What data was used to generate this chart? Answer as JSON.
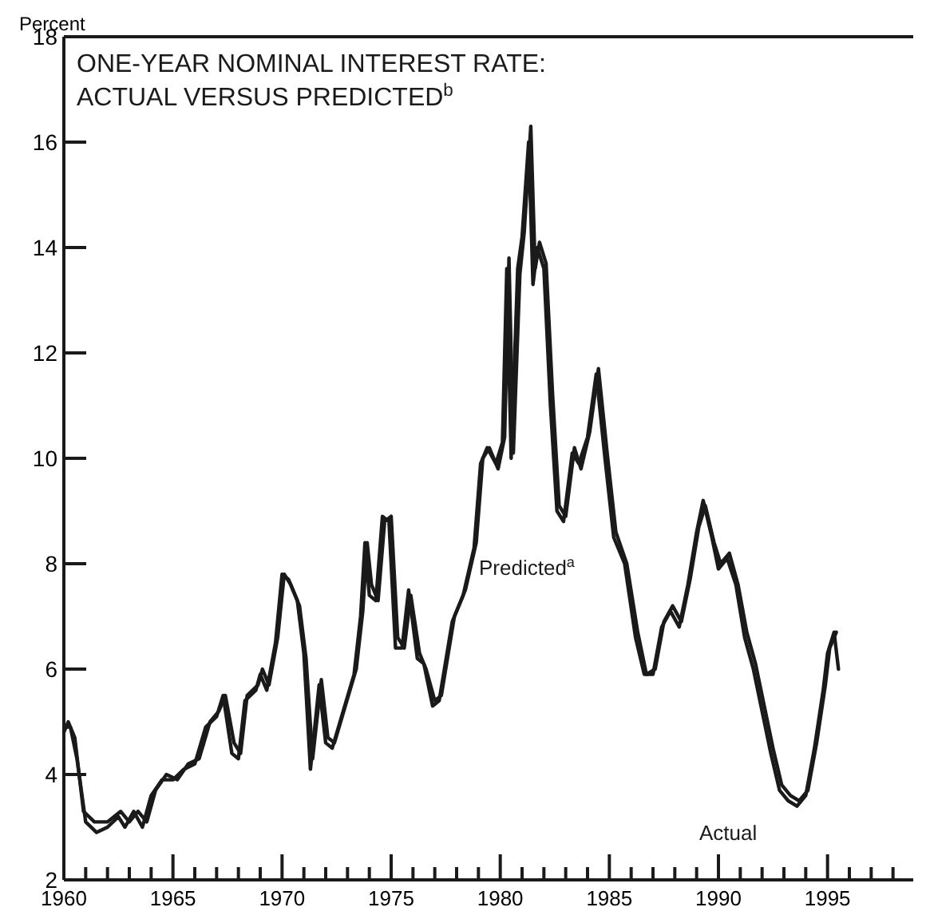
{
  "chart_data": {
    "type": "line",
    "title": "ONE-YEAR NOMINAL INTEREST RATE:\nACTUAL VERSUS PREDICTED$^{b}$",
    "ylabel": "Percent",
    "xlim": [
      1960,
      1999
    ],
    "xticks": [
      1960,
      {
        "value": 1961,
        "label": null
      },
      {
        "value": 1962,
        "label": null
      },
      {
        "value": 1963,
        "label": null
      },
      {
        "value": 1964,
        "label": null
      },
      1965,
      {
        "value": 1966,
        "label": null
      },
      {
        "value": 1967,
        "label": null
      },
      {
        "value": 1968,
        "label": null
      },
      {
        "value": 1969,
        "label": null
      },
      1970,
      {
        "value": 1971,
        "label": null
      },
      {
        "value": 1972,
        "label": null
      },
      {
        "value": 1973,
        "label": null
      },
      {
        "value": 1974,
        "label": null
      },
      1975,
      {
        "value": 1976,
        "label": null
      },
      {
        "value": 1977,
        "label": null
      },
      {
        "value": 1978,
        "label": null
      },
      {
        "value": 1979,
        "label": null
      },
      1980,
      {
        "value": 1981,
        "label": null
      },
      {
        "value": 1982,
        "label": null
      },
      {
        "value": 1983,
        "label": null
      },
      {
        "value": 1984,
        "label": null
      },
      1985,
      {
        "value": 1986,
        "label": null
      },
      {
        "value": 1987,
        "label": null
      },
      {
        "value": 1988,
        "label": null
      },
      {
        "value": 1989,
        "label": null
      },
      1990,
      {
        "value": 1991,
        "label": null
      },
      {
        "value": 1992,
        "label": null
      },
      {
        "value": 1993,
        "label": null
      },
      {
        "value": 1994,
        "label": null
      },
      1995,
      {
        "value": 1996,
        "label": null
      },
      {
        "value": 1997,
        "label": null
      },
      {
        "value": 1998,
        "label": null
      }
    ],
    "ylim": [
      2,
      18
    ],
    "yticks": [
      2,
      4,
      6,
      8,
      10,
      12,
      14,
      16,
      18
    ],
    "grid": false,
    "line_style": "solid",
    "series": [
      {
        "name": "Actual",
        "color": "#1a1a1a",
        "x": [
          1960.0,
          1960.3,
          1960.6,
          1961.0,
          1961.5,
          1962.0,
          1962.5,
          1962.8,
          1963.2,
          1963.6,
          1964.0,
          1964.5,
          1965.0,
          1965.5,
          1966.0,
          1966.5,
          1967.0,
          1967.3,
          1967.7,
          1968.0,
          1968.3,
          1968.8,
          1969.0,
          1969.3,
          1969.7,
          1970.0,
          1970.3,
          1970.7,
          1971.0,
          1971.3,
          1971.7,
          1972.0,
          1972.3,
          1972.8,
          1973.3,
          1973.6,
          1973.8,
          1974.0,
          1974.3,
          1974.6,
          1974.9,
          1975.2,
          1975.5,
          1975.8,
          1976.2,
          1976.5,
          1976.9,
          1977.2,
          1977.8,
          1978.3,
          1978.8,
          1979.1,
          1979.4,
          1979.8,
          1980.1,
          1980.3,
          1980.5,
          1980.8,
          1981.0,
          1981.3,
          1981.5,
          1981.7,
          1982.0,
          1982.3,
          1982.6,
          1982.9,
          1983.3,
          1983.6,
          1984.0,
          1984.4,
          1984.8,
          1985.2,
          1985.7,
          1986.2,
          1986.6,
          1987.0,
          1987.4,
          1987.8,
          1988.2,
          1988.6,
          1989.0,
          1989.3,
          1989.7,
          1990.0,
          1990.4,
          1990.8,
          1991.2,
          1991.6,
          1992.0,
          1992.4,
          1992.8,
          1993.2,
          1993.6,
          1994.0,
          1994.4,
          1994.8,
          1995.0,
          1995.3,
          1995.5
        ],
        "values": [
          4.9,
          4.9,
          4.3,
          3.1,
          2.9,
          3.0,
          3.2,
          3.0,
          3.3,
          3.0,
          3.6,
          3.9,
          3.9,
          4.1,
          4.2,
          4.9,
          5.1,
          5.5,
          4.4,
          4.3,
          5.4,
          5.6,
          5.9,
          5.6,
          6.5,
          7.8,
          7.7,
          7.3,
          6.3,
          4.1,
          5.7,
          4.6,
          4.5,
          5.2,
          5.9,
          7.0,
          8.4,
          7.4,
          7.3,
          8.9,
          8.8,
          6.4,
          6.4,
          7.5,
          6.2,
          6.1,
          5.3,
          5.4,
          6.9,
          7.4,
          8.3,
          9.9,
          10.2,
          9.9,
          10.3,
          13.6,
          10.0,
          13.6,
          14.2,
          16.0,
          13.3,
          14.0,
          13.6,
          11.0,
          9.0,
          8.8,
          10.1,
          9.9,
          10.4,
          11.6,
          10.0,
          8.5,
          8.0,
          6.6,
          5.9,
          5.9,
          6.8,
          7.1,
          6.8,
          7.6,
          8.6,
          9.2,
          8.5,
          7.9,
          8.1,
          7.6,
          6.6,
          6.0,
          5.2,
          4.4,
          3.7,
          3.5,
          3.4,
          3.6,
          4.5,
          5.6,
          6.3,
          6.7,
          6.0
        ]
      },
      {
        "name": "Predicted$^{a}$",
        "color": "#1a1a1a",
        "x": [
          1960.0,
          1960.2,
          1960.5,
          1960.9,
          1961.4,
          1962.0,
          1962.6,
          1963.0,
          1963.4,
          1963.8,
          1964.2,
          1964.7,
          1965.2,
          1965.7,
          1966.2,
          1966.7,
          1967.1,
          1967.4,
          1967.8,
          1968.1,
          1968.4,
          1968.9,
          1969.1,
          1969.4,
          1969.8,
          1970.1,
          1970.4,
          1970.8,
          1971.1,
          1971.4,
          1971.8,
          1972.1,
          1972.4,
          1972.9,
          1973.4,
          1973.7,
          1973.9,
          1974.1,
          1974.4,
          1974.7,
          1975.0,
          1975.3,
          1975.6,
          1975.9,
          1976.3,
          1976.6,
          1977.0,
          1977.3,
          1977.9,
          1978.4,
          1978.9,
          1979.2,
          1979.5,
          1979.9,
          1980.2,
          1980.4,
          1980.6,
          1980.9,
          1981.1,
          1981.4,
          1981.6,
          1981.8,
          1982.1,
          1982.4,
          1982.7,
          1983.0,
          1983.4,
          1983.7,
          1984.1,
          1984.5,
          1984.9,
          1985.3,
          1985.8,
          1986.3,
          1986.7,
          1987.1,
          1987.5,
          1987.9,
          1988.3,
          1988.7,
          1989.1,
          1989.4,
          1989.8,
          1990.1,
          1990.5,
          1990.9,
          1991.3,
          1991.7,
          1992.1,
          1992.5,
          1992.9,
          1993.3,
          1993.7,
          1994.1,
          1994.5,
          1994.9,
          1995.1,
          1995.4
        ],
        "values": [
          4.8,
          5.0,
          4.7,
          3.3,
          3.1,
          3.1,
          3.3,
          3.1,
          3.3,
          3.1,
          3.7,
          4.0,
          3.9,
          4.2,
          4.3,
          5.0,
          5.2,
          5.5,
          4.6,
          4.4,
          5.5,
          5.7,
          6.0,
          5.7,
          6.6,
          7.8,
          7.6,
          7.2,
          6.2,
          4.3,
          5.8,
          4.7,
          4.6,
          5.3,
          6.0,
          7.1,
          8.4,
          7.6,
          7.3,
          8.8,
          8.9,
          6.6,
          6.4,
          7.4,
          6.3,
          6.0,
          5.4,
          5.5,
          7.0,
          7.5,
          8.4,
          10.0,
          10.2,
          9.8,
          10.4,
          13.8,
          10.1,
          13.5,
          14.3,
          16.3,
          13.6,
          14.1,
          13.7,
          11.2,
          9.1,
          8.9,
          10.2,
          9.8,
          10.5,
          11.7,
          10.1,
          8.6,
          8.0,
          6.7,
          5.9,
          6.0,
          6.9,
          7.2,
          6.9,
          7.7,
          8.7,
          9.1,
          8.4,
          8.0,
          8.2,
          7.6,
          6.7,
          6.1,
          5.3,
          4.5,
          3.8,
          3.6,
          3.5,
          3.7,
          4.6,
          5.7,
          6.4,
          6.7
        ]
      }
    ]
  }
}
